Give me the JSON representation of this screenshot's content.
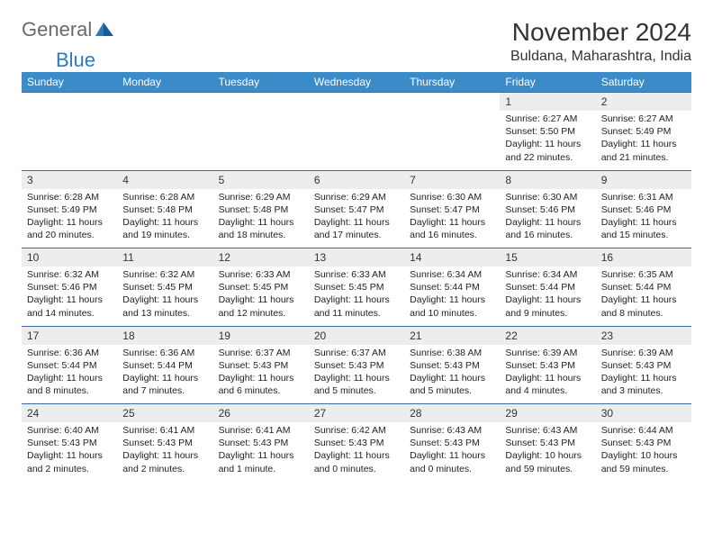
{
  "logo": {
    "general": "General",
    "blue": "Blue"
  },
  "title": "November 2024",
  "location": "Buldana, Maharashtra, India",
  "colors": {
    "header_bg": "#3b8bc9",
    "header_text": "#ffffff",
    "daynum_bg": "#ededed",
    "border": "#3b6ea0",
    "logo_gray": "#6a6a6a",
    "logo_blue": "#2d79c1"
  },
  "day_headers": [
    "Sunday",
    "Monday",
    "Tuesday",
    "Wednesday",
    "Thursday",
    "Friday",
    "Saturday"
  ],
  "weeks": [
    {
      "nums": [
        "",
        "",
        "",
        "",
        "",
        "1",
        "2"
      ],
      "details": [
        "",
        "",
        "",
        "",
        "",
        "Sunrise: 6:27 AM\nSunset: 5:50 PM\nDaylight: 11 hours and 22 minutes.",
        "Sunrise: 6:27 AM\nSunset: 5:49 PM\nDaylight: 11 hours and 21 minutes."
      ]
    },
    {
      "nums": [
        "3",
        "4",
        "5",
        "6",
        "7",
        "8",
        "9"
      ],
      "details": [
        "Sunrise: 6:28 AM\nSunset: 5:49 PM\nDaylight: 11 hours and 20 minutes.",
        "Sunrise: 6:28 AM\nSunset: 5:48 PM\nDaylight: 11 hours and 19 minutes.",
        "Sunrise: 6:29 AM\nSunset: 5:48 PM\nDaylight: 11 hours and 18 minutes.",
        "Sunrise: 6:29 AM\nSunset: 5:47 PM\nDaylight: 11 hours and 17 minutes.",
        "Sunrise: 6:30 AM\nSunset: 5:47 PM\nDaylight: 11 hours and 16 minutes.",
        "Sunrise: 6:30 AM\nSunset: 5:46 PM\nDaylight: 11 hours and 16 minutes.",
        "Sunrise: 6:31 AM\nSunset: 5:46 PM\nDaylight: 11 hours and 15 minutes."
      ]
    },
    {
      "nums": [
        "10",
        "11",
        "12",
        "13",
        "14",
        "15",
        "16"
      ],
      "details": [
        "Sunrise: 6:32 AM\nSunset: 5:46 PM\nDaylight: 11 hours and 14 minutes.",
        "Sunrise: 6:32 AM\nSunset: 5:45 PM\nDaylight: 11 hours and 13 minutes.",
        "Sunrise: 6:33 AM\nSunset: 5:45 PM\nDaylight: 11 hours and 12 minutes.",
        "Sunrise: 6:33 AM\nSunset: 5:45 PM\nDaylight: 11 hours and 11 minutes.",
        "Sunrise: 6:34 AM\nSunset: 5:44 PM\nDaylight: 11 hours and 10 minutes.",
        "Sunrise: 6:34 AM\nSunset: 5:44 PM\nDaylight: 11 hours and 9 minutes.",
        "Sunrise: 6:35 AM\nSunset: 5:44 PM\nDaylight: 11 hours and 8 minutes."
      ]
    },
    {
      "nums": [
        "17",
        "18",
        "19",
        "20",
        "21",
        "22",
        "23"
      ],
      "details": [
        "Sunrise: 6:36 AM\nSunset: 5:44 PM\nDaylight: 11 hours and 8 minutes.",
        "Sunrise: 6:36 AM\nSunset: 5:44 PM\nDaylight: 11 hours and 7 minutes.",
        "Sunrise: 6:37 AM\nSunset: 5:43 PM\nDaylight: 11 hours and 6 minutes.",
        "Sunrise: 6:37 AM\nSunset: 5:43 PM\nDaylight: 11 hours and 5 minutes.",
        "Sunrise: 6:38 AM\nSunset: 5:43 PM\nDaylight: 11 hours and 5 minutes.",
        "Sunrise: 6:39 AM\nSunset: 5:43 PM\nDaylight: 11 hours and 4 minutes.",
        "Sunrise: 6:39 AM\nSunset: 5:43 PM\nDaylight: 11 hours and 3 minutes."
      ]
    },
    {
      "nums": [
        "24",
        "25",
        "26",
        "27",
        "28",
        "29",
        "30"
      ],
      "details": [
        "Sunrise: 6:40 AM\nSunset: 5:43 PM\nDaylight: 11 hours and 2 minutes.",
        "Sunrise: 6:41 AM\nSunset: 5:43 PM\nDaylight: 11 hours and 2 minutes.",
        "Sunrise: 6:41 AM\nSunset: 5:43 PM\nDaylight: 11 hours and 1 minute.",
        "Sunrise: 6:42 AM\nSunset: 5:43 PM\nDaylight: 11 hours and 0 minutes.",
        "Sunrise: 6:43 AM\nSunset: 5:43 PM\nDaylight: 11 hours and 0 minutes.",
        "Sunrise: 6:43 AM\nSunset: 5:43 PM\nDaylight: 10 hours and 59 minutes.",
        "Sunrise: 6:44 AM\nSunset: 5:43 PM\nDaylight: 10 hours and 59 minutes."
      ]
    }
  ]
}
